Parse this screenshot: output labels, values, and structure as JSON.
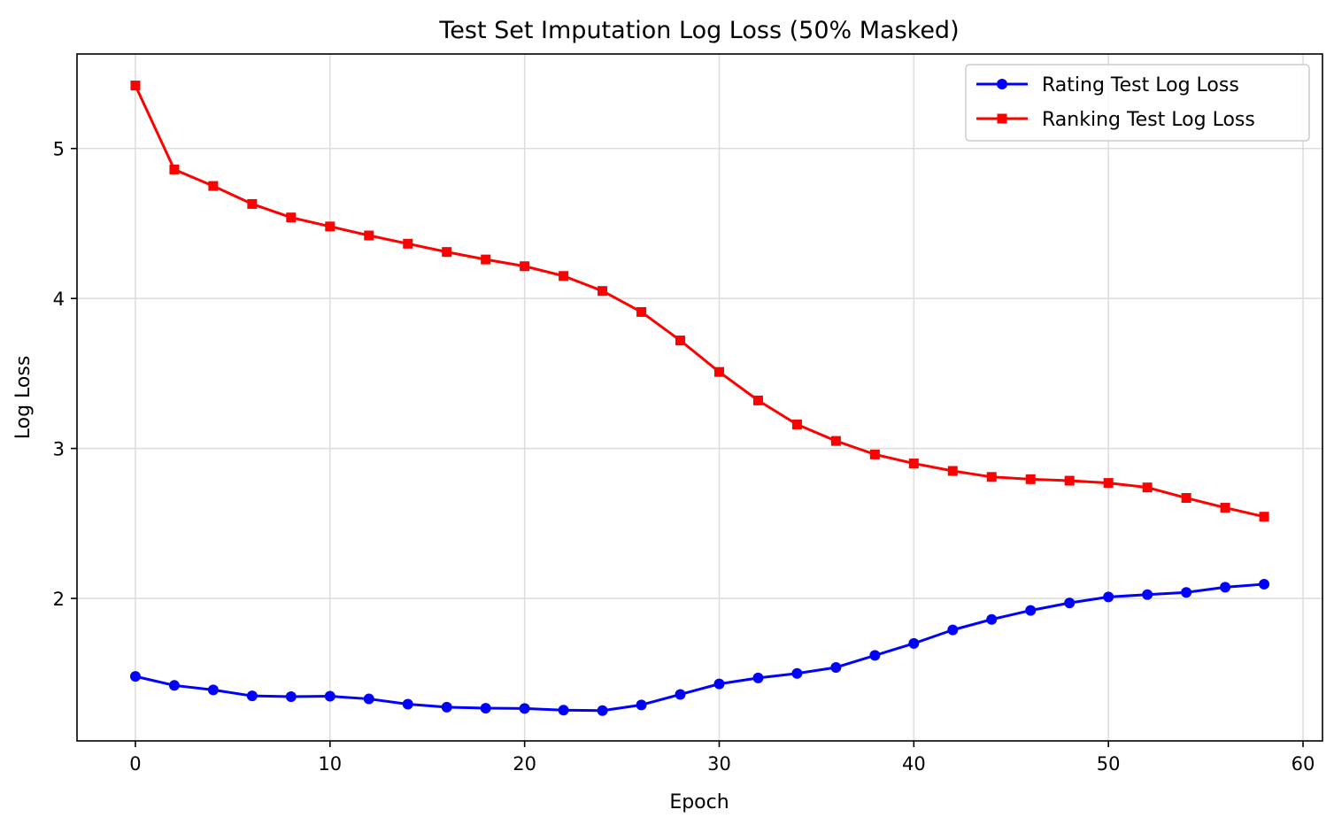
{
  "chart_data": {
    "type": "line",
    "title": "Test Set Imputation Log Loss (50% Masked)",
    "xlabel": "Epoch",
    "ylabel": "Log Loss",
    "xlim": [
      -3,
      61
    ],
    "ylim": [
      1.05,
      5.63
    ],
    "x_ticks": [
      0,
      10,
      20,
      30,
      40,
      50,
      60
    ],
    "y_ticks": [
      2,
      3,
      4,
      5
    ],
    "grid": true,
    "legend_position": "top-right",
    "x": [
      0,
      2,
      4,
      6,
      8,
      10,
      12,
      14,
      16,
      18,
      20,
      22,
      24,
      26,
      28,
      30,
      32,
      34,
      36,
      38,
      40,
      42,
      44,
      46,
      48,
      50,
      52,
      54,
      56,
      58
    ],
    "series": [
      {
        "name": "Rating Test Log Loss",
        "color": "#0000ff",
        "marker": "circle",
        "values": [
          1.48,
          1.42,
          1.39,
          1.35,
          1.345,
          1.348,
          1.33,
          1.295,
          1.275,
          1.268,
          1.266,
          1.255,
          1.252,
          1.29,
          1.36,
          1.43,
          1.47,
          1.5,
          1.54,
          1.62,
          1.7,
          1.79,
          1.86,
          1.92,
          1.97,
          2.01,
          2.025,
          2.04,
          2.075,
          2.095
        ]
      },
      {
        "name": "Ranking Test Log Loss",
        "color": "#ff0000",
        "marker": "square",
        "values": [
          5.42,
          4.86,
          4.75,
          4.63,
          4.54,
          4.48,
          4.42,
          4.365,
          4.31,
          4.26,
          4.215,
          4.15,
          4.05,
          3.91,
          3.72,
          3.51,
          3.32,
          3.16,
          3.05,
          2.96,
          2.9,
          2.85,
          2.81,
          2.795,
          2.785,
          2.77,
          2.74,
          2.67,
          2.605,
          2.545
        ]
      }
    ]
  }
}
